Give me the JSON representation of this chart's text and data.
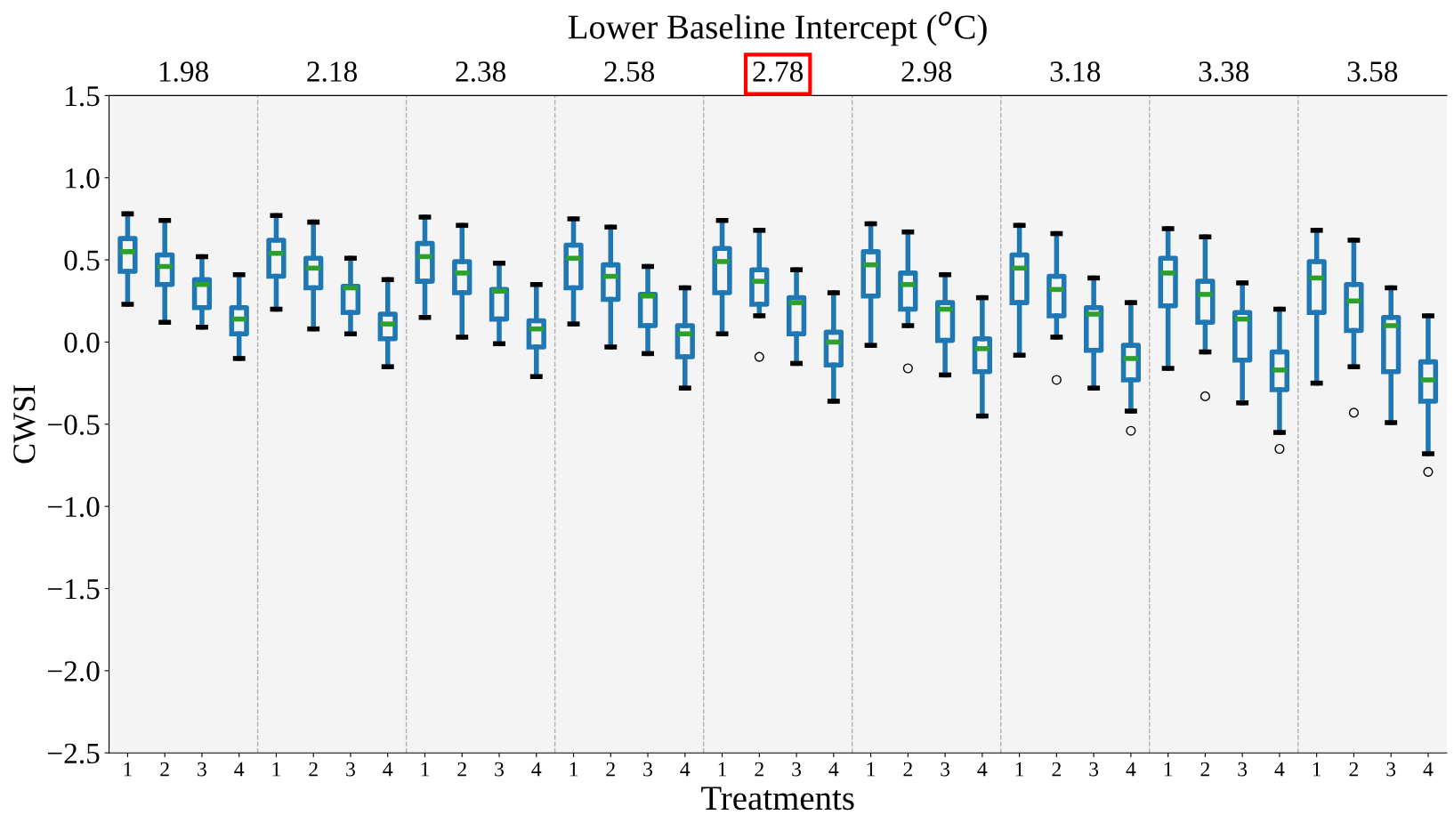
{
  "chart_data": {
    "type": "box",
    "xlabel": "Treatments",
    "ylabel": "CWSI",
    "x2label": "Lower Baseline Intercept ($^{o}$C)",
    "categories": [
      "1",
      "2",
      "3",
      "4",
      "1",
      "2",
      "3",
      "4",
      "1",
      "2",
      "3",
      "4",
      "1",
      "2",
      "3",
      "4",
      "1",
      "2",
      "3",
      "4",
      "1",
      "2",
      "3",
      "4",
      "1",
      "2",
      "3",
      "4",
      "1",
      "2",
      "3",
      "4",
      "1",
      "2",
      "3",
      "4"
    ],
    "ylim": [
      -2.5,
      1.5
    ],
    "yticks": [
      {
        "value": -2.5,
        "label": "−2.5"
      },
      {
        "value": -2.0,
        "label": "−2.0"
      },
      {
        "value": -1.5,
        "label": "−1.5"
      },
      {
        "value": -1.0,
        "label": "−1.0"
      },
      {
        "value": -0.5,
        "label": "−0.5"
      },
      {
        "value": 0,
        "label": "0.0"
      },
      {
        "value": 0.5,
        "label": "0.5"
      },
      {
        "value": 1.0,
        "label": "1.0"
      },
      {
        "value": 1.5,
        "label": "1.5"
      }
    ],
    "annotations": [
      "1.98",
      "2.18",
      "2.38",
      "2.58",
      "2.78",
      "2.98",
      "3.18",
      "3.38",
      "3.58"
    ],
    "grid": false,
    "series": [
      {
        "color": "#1f77b4",
        "boxes": [
          {
            "low": 0.23,
            "q1": 0.43,
            "median": 0.55,
            "q3": 0.63,
            "high": 0.78
          },
          {
            "low": 0.12,
            "q1": 0.35,
            "median": 0.46,
            "q3": 0.53,
            "high": 0.74
          },
          {
            "low": 0.09,
            "q1": 0.21,
            "median": 0.35,
            "q3": 0.38,
            "high": 0.52
          },
          {
            "low": -0.1,
            "q1": 0.05,
            "median": 0.14,
            "q3": 0.21,
            "high": 0.41
          },
          {
            "low": 0.2,
            "q1": 0.4,
            "median": 0.54,
            "q3": 0.62,
            "high": 0.77
          },
          {
            "low": 0.08,
            "q1": 0.33,
            "median": 0.45,
            "q3": 0.51,
            "high": 0.73
          },
          {
            "low": 0.05,
            "q1": 0.18,
            "median": 0.33,
            "q3": 0.34,
            "high": 0.51
          },
          {
            "low": -0.15,
            "q1": 0.02,
            "median": 0.11,
            "q3": 0.17,
            "high": 0.38
          },
          {
            "low": 0.15,
            "q1": 0.37,
            "median": 0.52,
            "q3": 0.6,
            "high": 0.76
          },
          {
            "low": 0.03,
            "q1": 0.3,
            "median": 0.42,
            "q3": 0.49,
            "high": 0.71
          },
          {
            "low": -0.01,
            "q1": 0.14,
            "median": 0.31,
            "q3": 0.32,
            "high": 0.48
          },
          {
            "low": -0.21,
            "q1": -0.03,
            "median": 0.08,
            "q3": 0.13,
            "high": 0.35
          },
          {
            "low": 0.11,
            "q1": 0.33,
            "median": 0.51,
            "q3": 0.59,
            "high": 0.75
          },
          {
            "low": -0.03,
            "q1": 0.26,
            "median": 0.4,
            "q3": 0.47,
            "high": 0.7
          },
          {
            "low": -0.07,
            "q1": 0.1,
            "median": 0.28,
            "q3": 0.29,
            "high": 0.46
          },
          {
            "low": -0.28,
            "q1": -0.09,
            "median": 0.05,
            "q3": 0.1,
            "high": 0.33
          },
          {
            "low": 0.05,
            "q1": 0.3,
            "median": 0.49,
            "q3": 0.57,
            "high": 0.74
          },
          {
            "low": 0.16,
            "q1": 0.23,
            "median": 0.37,
            "q3": 0.44,
            "high": 0.68,
            "outliers": [
              -0.09
            ]
          },
          {
            "low": -0.13,
            "q1": 0.05,
            "median": 0.24,
            "q3": 0.27,
            "high": 0.44
          },
          {
            "low": -0.36,
            "q1": -0.14,
            "median": 0.0,
            "q3": 0.06,
            "high": 0.3
          },
          {
            "low": -0.02,
            "q1": 0.28,
            "median": 0.47,
            "q3": 0.55,
            "high": 0.72
          },
          {
            "low": 0.1,
            "q1": 0.2,
            "median": 0.35,
            "q3": 0.42,
            "high": 0.67,
            "outliers": [
              -0.16
            ]
          },
          {
            "low": -0.2,
            "q1": 0.01,
            "median": 0.2,
            "q3": 0.24,
            "high": 0.41
          },
          {
            "low": -0.45,
            "q1": -0.18,
            "median": -0.04,
            "q3": 0.02,
            "high": 0.27
          },
          {
            "low": -0.08,
            "q1": 0.24,
            "median": 0.45,
            "q3": 0.53,
            "high": 0.71
          },
          {
            "low": 0.03,
            "q1": 0.16,
            "median": 0.32,
            "q3": 0.4,
            "high": 0.66,
            "outliers": [
              -0.23
            ]
          },
          {
            "low": -0.28,
            "q1": -0.05,
            "median": 0.17,
            "q3": 0.21,
            "high": 0.39
          },
          {
            "low": -0.42,
            "q1": -0.23,
            "median": -0.1,
            "q3": -0.02,
            "high": 0.24,
            "outliers": [
              -0.54
            ]
          },
          {
            "low": -0.16,
            "q1": 0.22,
            "median": 0.42,
            "q3": 0.51,
            "high": 0.69
          },
          {
            "low": -0.06,
            "q1": 0.12,
            "median": 0.29,
            "q3": 0.37,
            "high": 0.64,
            "outliers": [
              -0.33
            ]
          },
          {
            "low": -0.37,
            "q1": -0.11,
            "median": 0.14,
            "q3": 0.18,
            "high": 0.36
          },
          {
            "low": -0.55,
            "q1": -0.29,
            "median": -0.17,
            "q3": -0.06,
            "high": 0.2,
            "outliers": [
              -0.65
            ]
          },
          {
            "low": -0.25,
            "q1": 0.18,
            "median": 0.39,
            "q3": 0.49,
            "high": 0.68
          },
          {
            "low": -0.15,
            "q1": 0.07,
            "median": 0.25,
            "q3": 0.35,
            "high": 0.62,
            "outliers": [
              -0.43
            ]
          },
          {
            "low": -0.49,
            "q1": -0.18,
            "median": 0.1,
            "q3": 0.15,
            "high": 0.33
          },
          {
            "low": -0.68,
            "q1": -0.36,
            "median": -0.23,
            "q3": -0.12,
            "high": 0.16,
            "outliers": [
              -0.79
            ]
          }
        ]
      }
    ]
  }
}
